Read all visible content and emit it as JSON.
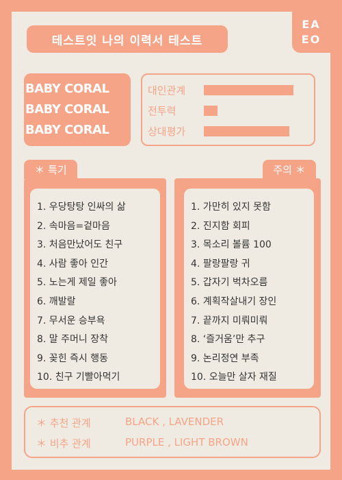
{
  "title": "테스트잇 나의 이력서 테스트",
  "corner": {
    "line1": "EA",
    "line2": "EO"
  },
  "baby_coral": [
    "BABY CORAL",
    "BABY CORAL",
    "BABY CORAL"
  ],
  "stats": [
    {
      "label": "대인관계",
      "level": 0.87
    },
    {
      "label": "전투력",
      "level": 0.13
    },
    {
      "label": "상대평가",
      "level": 0.83
    }
  ],
  "special": {
    "tab": "＊ 특기",
    "items": [
      "1. 우당탕탕 인싸의 삶",
      "2. 속마음=겉마음",
      "3. 처음만났어도 친구",
      "4. 사람 좋아 인간",
      "5. 노는게 제일 좋아",
      "6. 깨발랄",
      "7. 무서운 승부욕",
      "8. 말 주머니 장착",
      "9. 꽂힌 즉시 행동",
      "10. 친구 기빨아먹기"
    ]
  },
  "caution": {
    "tab": "주의 ＊",
    "items": [
      "1. 가만히 있지 못함",
      "2. 진지함 회피",
      "3. 목소리 볼륨 100",
      "4. 팔랑팔랑 귀",
      "5. 갑자기 벅차오름",
      "6. 계획작살내기 장인",
      "7. 끝까지 미뤄미뤄",
      "8. ‘즐거움’만 추구",
      "9. 논리정연 부족",
      "10. 오늘만 살자 재질"
    ]
  },
  "relations": {
    "recommend_label": "＊ 추천 관계",
    "recommend_value": "BLACK , LAVENDER",
    "avoid_label": "＊ 비추 관계",
    "avoid_value": "PURPLE , LIGHT BROWN"
  },
  "colors": {
    "coral": "#f6a487",
    "background": "#efebe2",
    "text": "#333333"
  }
}
